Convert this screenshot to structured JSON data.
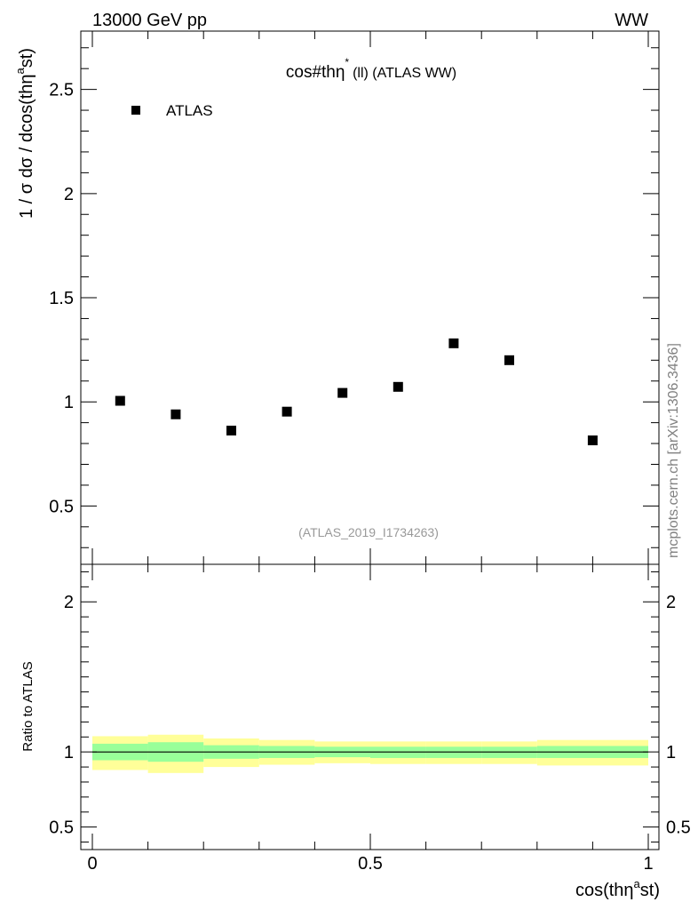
{
  "header": {
    "left": "13000 GeV pp",
    "right": "WW"
  },
  "side_label": "mcplots.cern.ch [arXiv:1306.3436]",
  "chart_data": [
    {
      "type": "scatter",
      "title_main": "cos#thη",
      "title_sup": "*",
      "title_rest": "(ll) (ATLAS WW)",
      "ylabel_parts": [
        "1 / σ  dσ / dcos(thη",
        "a",
        "st)"
      ],
      "xlabel_parts": [
        "cos(thη",
        "a",
        "st)"
      ],
      "watermark": "(ATLAS_2019_I1734263)",
      "xlim": [
        0,
        1
      ],
      "ylim": [
        0.22,
        2.78
      ],
      "y_ticks": [
        0.5,
        1,
        1.5,
        2,
        2.5
      ],
      "y_tick_labels": [
        "0.5",
        "1",
        "1.5",
        "2",
        "2.5"
      ],
      "x_ticks": [
        0,
        0.5,
        1
      ],
      "x_tick_labels": [
        "0",
        "0.5",
        "1"
      ],
      "legend": {
        "label": "ATLAS",
        "position": "top-left"
      },
      "series": [
        {
          "name": "ATLAS",
          "color": "#000000",
          "x": [
            0.05,
            0.15,
            0.25,
            0.35,
            0.45,
            0.55,
            0.65,
            0.75,
            0.9
          ],
          "y": [
            1.005,
            0.94,
            0.862,
            0.953,
            1.043,
            1.072,
            1.281,
            1.2,
            0.815
          ]
        }
      ]
    },
    {
      "type": "area",
      "ylabel": "Ratio to ATLAS",
      "xlim": [
        0,
        1
      ],
      "ylim": [
        0.35,
        2.25
      ],
      "y_ticks": [
        0.5,
        1,
        2
      ],
      "y_tick_labels": [
        "0.5",
        "1",
        "2"
      ],
      "reference_line": 1,
      "bin_edges": [
        0,
        0.1,
        0.2,
        0.3,
        0.4,
        0.5,
        0.6,
        0.7,
        0.8,
        1.0
      ],
      "bands": [
        {
          "kind": "total",
          "color": "#ffff99",
          "low": [
            0.88,
            0.86,
            0.9,
            0.915,
            0.925,
            0.92,
            0.92,
            0.92,
            0.91
          ],
          "high": [
            1.105,
            1.115,
            1.09,
            1.08,
            1.07,
            1.07,
            1.07,
            1.07,
            1.08
          ]
        },
        {
          "kind": "stat",
          "color": "#99ff99",
          "low": [
            0.945,
            0.935,
            0.955,
            0.96,
            0.965,
            0.96,
            0.96,
            0.96,
            0.96
          ],
          "high": [
            1.055,
            1.065,
            1.045,
            1.04,
            1.035,
            1.035,
            1.035,
            1.035,
            1.04
          ]
        }
      ]
    }
  ]
}
